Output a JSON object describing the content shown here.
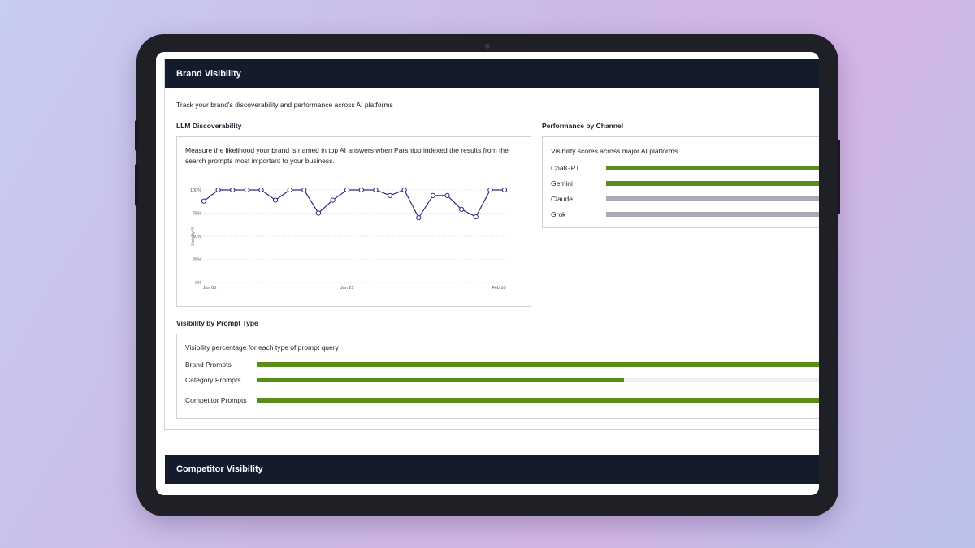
{
  "header": {
    "title": "Brand Visibility"
  },
  "description": "Track your brand's discoverability and performance across AI platforms",
  "chart_data": [
    {
      "type": "line",
      "title": "LLM Discoverability",
      "subtitle": "Measure the likelihood your brand is named in top AI answers when Parsnipp indexed the results from the search prompts most important to your business.",
      "categories": [
        "Jan 05",
        null,
        null,
        null,
        null,
        null,
        null,
        null,
        null,
        null,
        "Jan 21",
        null,
        null,
        null,
        null,
        null,
        null,
        null,
        null,
        null,
        null,
        "Feb 10"
      ],
      "series": [
        {
          "name": "Visibility",
          "color": "#33297a",
          "values": [
            88,
            100,
            100,
            100,
            100,
            89,
            100,
            100,
            75,
            89,
            100,
            100,
            100,
            94,
            100,
            70,
            94,
            94,
            79,
            71,
            100,
            100
          ]
        }
      ],
      "ylabel": "Visibility %",
      "ylim": [
        0,
        100
      ],
      "yticks": [
        {
          "value": 0,
          "label": "0%"
        },
        {
          "value": 25,
          "label": "25%"
        },
        {
          "value": 50,
          "label": "50%"
        },
        {
          "value": 75,
          "label": "75%"
        },
        {
          "value": 100,
          "label": "100%"
        }
      ],
      "grid": true
    },
    {
      "type": "bar",
      "orientation": "horizontal",
      "title": "Performance by Channel",
      "subtitle": "Visibility scores across major AI platforms",
      "categories": [
        "ChatGPT",
        "Gemini",
        "Claude",
        "Grok"
      ],
      "values": [
        100,
        100,
        0,
        0
      ],
      "xlim": [
        0,
        100
      ],
      "color": "#5a8e18",
      "track_color": "#a8abb2"
    },
    {
      "type": "bar",
      "orientation": "horizontal",
      "title": "Visibility by Prompt Type",
      "subtitle": "Visibility percentage for each type of prompt query",
      "categories": [
        "Brand Prompts",
        "Category Prompts",
        "Competitor Prompts"
      ],
      "values": [
        100,
        58,
        100
      ],
      "xlim": [
        0,
        100
      ],
      "color": "#5a8e18",
      "track_color": "#efefef"
    }
  ],
  "competitor": {
    "title": "Competitor Visibility"
  }
}
